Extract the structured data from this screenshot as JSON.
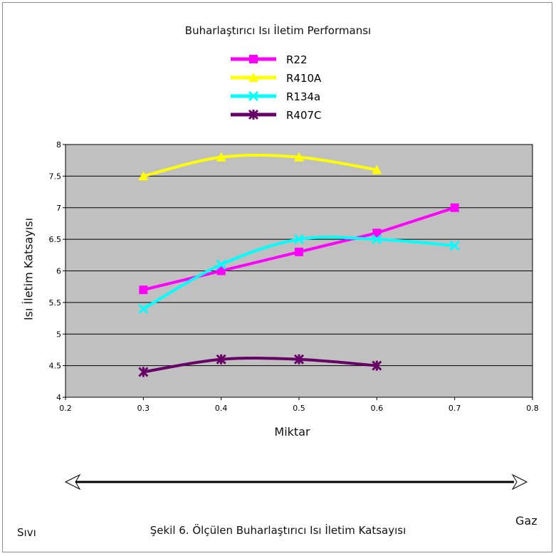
{
  "title": "Buharlaştırıcı Isı İletim Performansı",
  "caption": "Şekil 6. Ölçülen Buharlaştırıcı Isı İletim Katsayısı",
  "phase_arrow": {
    "left_label": "Sıvı",
    "right_label": "Gaz"
  },
  "chart_data": {
    "type": "line",
    "title": "Buharlaştırıcı Isı İletim Performansı",
    "xlabel": "Miktar",
    "ylabel": "Isı İletim Katsayısı",
    "xlim": [
      0.2,
      0.8
    ],
    "ylim": [
      4,
      8
    ],
    "x_ticks": [
      "0.2",
      "0.3",
      "0.4",
      "0.5",
      "0.6",
      "0.7",
      "0.8"
    ],
    "y_ticks": [
      "4",
      "4.5",
      "5",
      "5.5",
      "6",
      "6.5",
      "7",
      "7.5",
      "8"
    ],
    "grid": true,
    "legend_position": "top",
    "background": "#c0c0c0",
    "series": [
      {
        "name": "R22",
        "color": "#ff00ff",
        "marker": "square",
        "x": [
          0.3,
          0.4,
          0.5,
          0.6,
          0.7
        ],
        "y": [
          5.7,
          6.0,
          6.3,
          6.6,
          7.0
        ]
      },
      {
        "name": "R410A",
        "color": "#ffff00",
        "marker": "triangle",
        "x": [
          0.3,
          0.4,
          0.5,
          0.6
        ],
        "y": [
          7.5,
          7.8,
          7.8,
          7.6
        ]
      },
      {
        "name": "R134a",
        "color": "#00ffff",
        "marker": "x",
        "x": [
          0.3,
          0.4,
          0.5,
          0.6,
          0.7
        ],
        "y": [
          5.4,
          6.1,
          6.5,
          6.5,
          6.4
        ]
      },
      {
        "name": "R407C",
        "color": "#660066",
        "marker": "star",
        "x": [
          0.3,
          0.4,
          0.5,
          0.6
        ],
        "y": [
          4.4,
          4.6,
          4.6,
          4.5
        ]
      }
    ]
  }
}
